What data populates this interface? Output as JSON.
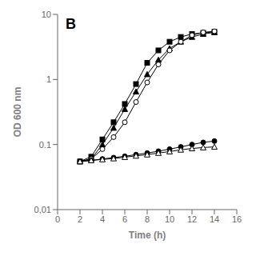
{
  "chart_data": {
    "type": "line",
    "title": "B",
    "x_label": "Time (h)",
    "y_label": "OD 600 nm",
    "log": "y",
    "grid": false,
    "xlim": [
      0,
      16
    ],
    "ylim": [
      0.01,
      10
    ],
    "xticks": [
      0,
      2,
      4,
      6,
      8,
      10,
      12,
      14,
      16
    ],
    "yticks": [
      {
        "value": 0.01,
        "label": "0,01"
      },
      0.1,
      1,
      10
    ],
    "x": [
      2,
      3,
      4,
      5,
      6,
      7,
      8,
      9,
      10,
      11,
      12,
      13,
      14
    ],
    "series": [
      {
        "color": "#000000",
        "marker": "square",
        "values": [
          0.055,
          0.065,
          0.12,
          0.22,
          0.42,
          0.85,
          1.8,
          2.8,
          3.8,
          4.5,
          5.0,
          5.2,
          5.4
        ]
      },
      {
        "color": "#000000",
        "marker": "triangle",
        "values": [
          0.055,
          0.06,
          0.1,
          0.18,
          0.35,
          0.65,
          1.2,
          2.0,
          3.0,
          3.8,
          4.5,
          5.0,
          5.3
        ]
      },
      {
        "color": "#000000",
        "marker": "open-circle",
        "values": [
          0.055,
          0.06,
          0.085,
          0.13,
          0.22,
          0.45,
          0.9,
          1.7,
          2.8,
          3.8,
          4.8,
          5.3,
          5.5
        ]
      },
      {
        "color": "#000000",
        "marker": "circle",
        "values": [
          0.055,
          0.057,
          0.06,
          0.063,
          0.066,
          0.07,
          0.074,
          0.079,
          0.085,
          0.092,
          0.1,
          0.108,
          0.113
        ]
      },
      {
        "color": "#000000",
        "marker": "open-triangle",
        "values": [
          0.055,
          0.057,
          0.059,
          0.061,
          0.064,
          0.067,
          0.07,
          0.074,
          0.078,
          0.083,
          0.087,
          0.09,
          0.092
        ]
      }
    ]
  }
}
